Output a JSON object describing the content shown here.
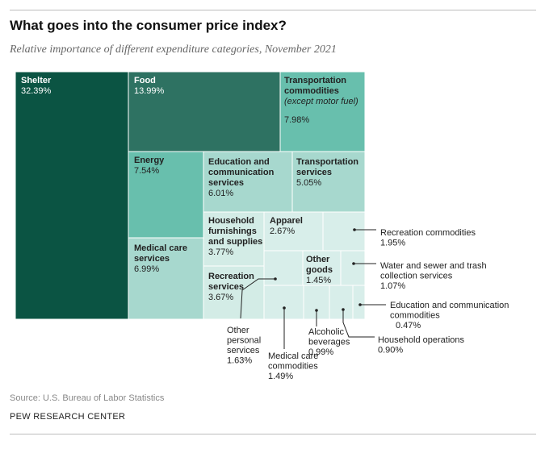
{
  "header": {
    "title": "What goes into the consumer price index?",
    "subtitle": "Relative importance of different expenditure categories, November 2021"
  },
  "footer": {
    "source": "Source: U.S. Bureau of Labor Statistics",
    "org": "PEW RESEARCH CENTER"
  },
  "colors": {
    "shelter": "#0b5443",
    "food": "#2e7262",
    "mid": "#68bfad",
    "light": "#a7d8ce",
    "lighter": "#d3ece6",
    "lightest": "#d8eeea",
    "border": "#ffffff",
    "text_dark": "#ffffff",
    "text_light": "#222222"
  },
  "chart_data": {
    "type": "treemap",
    "title": "What goes into the consumer price index?",
    "subtitle": "Relative importance of different expenditure categories, November 2021",
    "unit": "%",
    "items": [
      {
        "name": "Shelter",
        "value": 32.39,
        "label": "32.39%"
      },
      {
        "name": "Food",
        "value": 13.99,
        "label": "13.99%"
      },
      {
        "name": "Transportation commodities",
        "note": "(except motor fuel)",
        "value": 7.98,
        "label": "7.98%"
      },
      {
        "name": "Energy",
        "value": 7.54,
        "label": "7.54%"
      },
      {
        "name": "Medical care services",
        "value": 6.99,
        "label": "6.99%"
      },
      {
        "name": "Education and communication services",
        "value": 6.01,
        "label": "6.01%"
      },
      {
        "name": "Transportation services",
        "value": 5.05,
        "label": "5.05%"
      },
      {
        "name": "Household furnishings and supplies",
        "value": 3.77,
        "label": "3.77%"
      },
      {
        "name": "Recreation services",
        "value": 3.67,
        "label": "3.67%"
      },
      {
        "name": "Apparel",
        "value": 2.67,
        "label": "2.67%"
      },
      {
        "name": "Recreation commodities",
        "value": 1.95,
        "label": "1.95%"
      },
      {
        "name": "Other personal services",
        "value": 1.63,
        "label": "1.63%"
      },
      {
        "name": "Medical care commodities",
        "value": 1.49,
        "label": "1.49%"
      },
      {
        "name": "Other goods",
        "value": 1.45,
        "label": "1.45%"
      },
      {
        "name": "Water and sewer and trash collection services",
        "value": 1.07,
        "label": "1.07%"
      },
      {
        "name": "Alcoholic beverages",
        "value": 0.99,
        "label": "0.99%"
      },
      {
        "name": "Household operations",
        "value": 0.9,
        "label": "0.90%"
      },
      {
        "name": "Education and communication commodities",
        "value": 0.47,
        "label": "0.47%"
      }
    ]
  }
}
